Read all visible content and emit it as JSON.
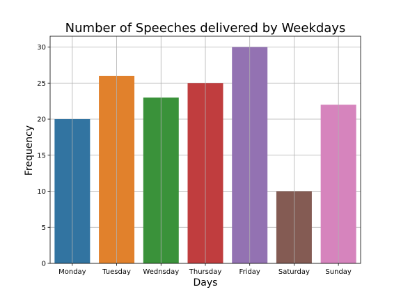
{
  "chart_data": {
    "type": "bar",
    "title": "Number of Speeches delivered by Weekdays",
    "xlabel": "Days",
    "ylabel": "Frequency",
    "categories": [
      "Monday",
      "Tuesday",
      "Wednsday",
      "Thursday",
      "Friday",
      "Saturday",
      "Sunday"
    ],
    "values": [
      20,
      26,
      23,
      25,
      30,
      10,
      22
    ],
    "colors": [
      "#3274a1",
      "#e1812c",
      "#3a923a",
      "#c03d3e",
      "#9372b2",
      "#845b53",
      "#d684bd"
    ],
    "yticks": [
      0,
      5,
      10,
      15,
      20,
      25,
      30
    ],
    "ylim": [
      0,
      31.5
    ],
    "grid": true,
    "legend": "none"
  }
}
